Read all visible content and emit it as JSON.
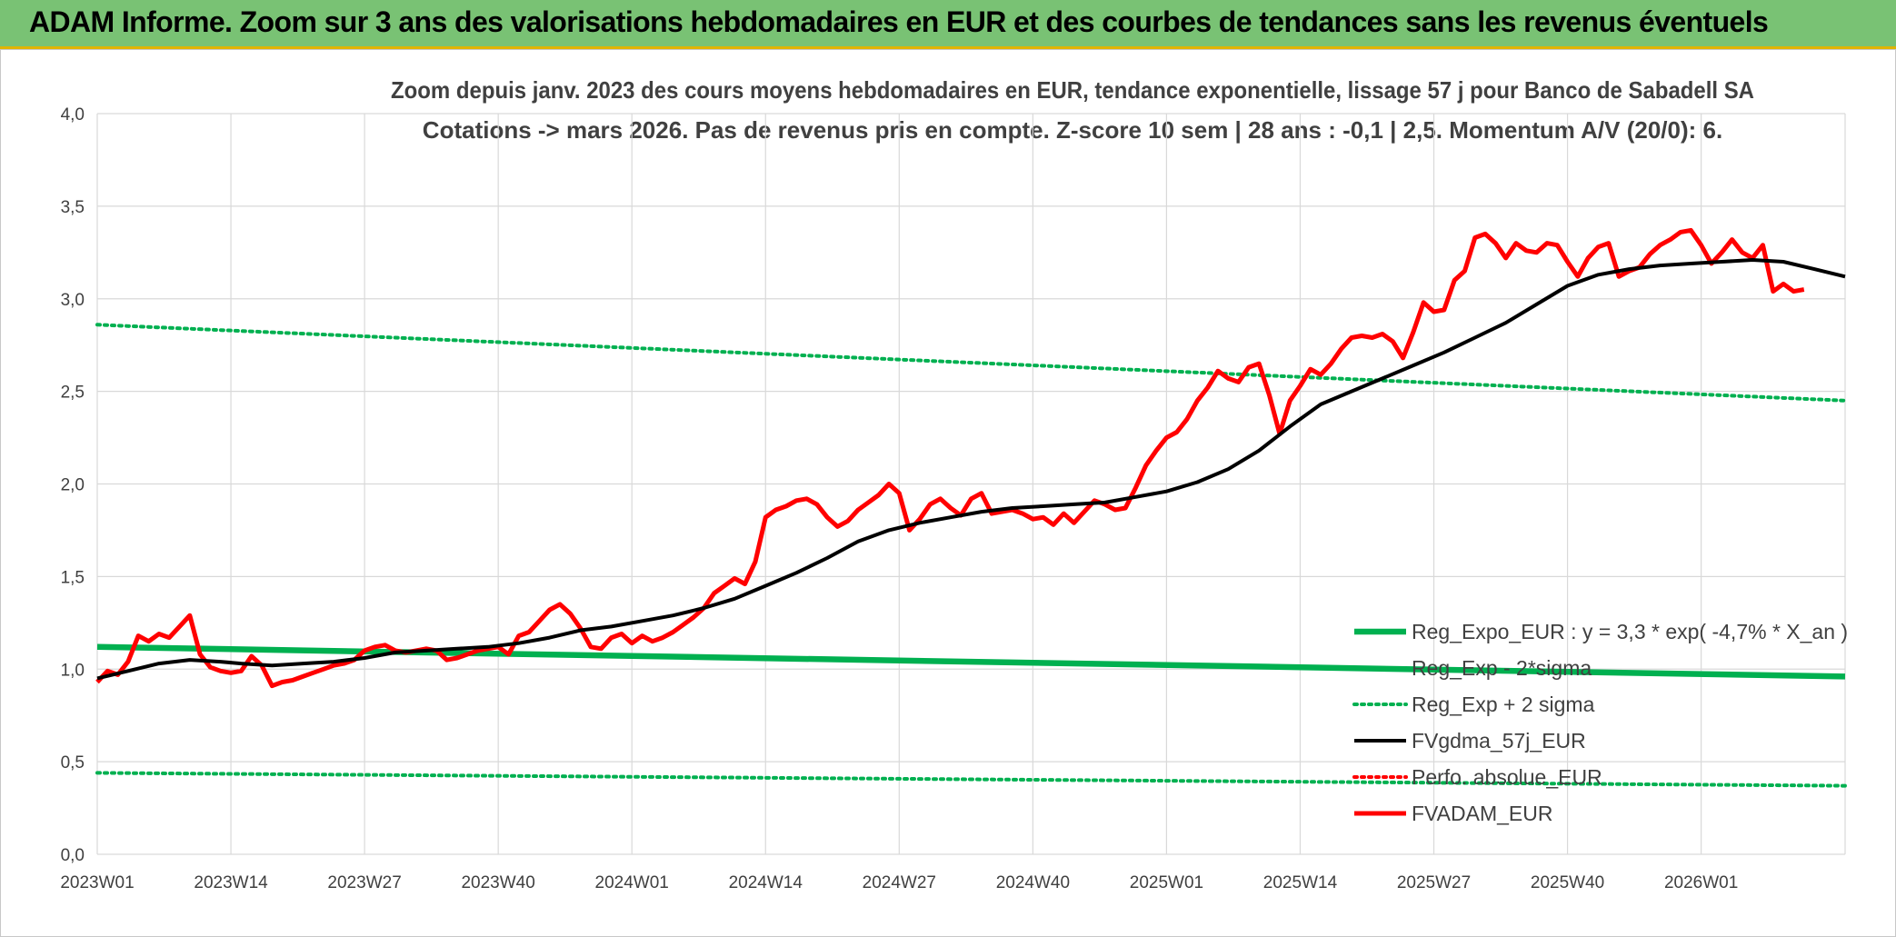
{
  "banner": {
    "title": "ADAM Informe. Zoom sur 3 ans des valorisations hebdomadaires en EUR et des courbes de tendances sans les revenus éventuels"
  },
  "colors": {
    "banner": "#79c274",
    "banner_border": "#e0b400",
    "reg_expo": "#00b050",
    "fvgdma": "#000000",
    "fvadam": "#ff0000",
    "perfo": "#ff0000",
    "grid": "#d9d9d9",
    "text": "#404040"
  },
  "chart_data": {
    "type": "line",
    "title_line1": "Zoom depuis janv. 2023 des cours moyens hebdomadaires en EUR, tendance exponentielle, lissage 57 j pour Banco de Sabadell SA",
    "title_line2": "Cotations -> mars 2026. Pas de revenus pris en compte. Z-score 10 sem | 28 ans : -0,1 | 2,5. Momentum A/V (20/0): 6.",
    "xlabel": "",
    "ylabel": "",
    "x_ticks": [
      "2023W01",
      "2023W14",
      "2023W27",
      "2023W40",
      "2024W01",
      "2024W14",
      "2024W27",
      "2024W40",
      "2025W01",
      "2025W14",
      "2025W27",
      "2025W40",
      "2026W01"
    ],
    "y_ticks": [
      "0,0",
      "0,5",
      "1,0",
      "1,5",
      "2,0",
      "2,5",
      "3,0",
      "3,5",
      "4,0"
    ],
    "ylim": [
      0,
      4
    ],
    "x_range_weeks": [
      0,
      170
    ],
    "grid": true,
    "legend_position": "bottom-right",
    "series": [
      {
        "name": "Reg_Expo_EUR : y = 3,3 * exp( -4,7% *  X_an )",
        "style": "solid-thick",
        "color": "#00b050",
        "points": [
          [
            0,
            1.12
          ],
          [
            170,
            0.96
          ]
        ]
      },
      {
        "name": "Reg_Exp - 2*sigma",
        "style": "dotted",
        "color": "#00b050",
        "points": [
          [
            0,
            0.44
          ],
          [
            170,
            0.37
          ]
        ]
      },
      {
        "name": "Reg_Exp + 2 sigma",
        "style": "dotted",
        "color": "#00b050",
        "points": [
          [
            0,
            2.86
          ],
          [
            170,
            2.45
          ]
        ]
      },
      {
        "name": "FVgdma_57j_EUR",
        "style": "solid",
        "color": "#000000",
        "points": [
          [
            0,
            0.95
          ],
          [
            3,
            0.99
          ],
          [
            6,
            1.03
          ],
          [
            9,
            1.05
          ],
          [
            12,
            1.04
          ],
          [
            14,
            1.03
          ],
          [
            17,
            1.02
          ],
          [
            20,
            1.03
          ],
          [
            23,
            1.04
          ],
          [
            26,
            1.06
          ],
          [
            29,
            1.09
          ],
          [
            32,
            1.1
          ],
          [
            35,
            1.11
          ],
          [
            38,
            1.12
          ],
          [
            41,
            1.14
          ],
          [
            44,
            1.17
          ],
          [
            47,
            1.21
          ],
          [
            50,
            1.23
          ],
          [
            53,
            1.26
          ],
          [
            56,
            1.29
          ],
          [
            59,
            1.33
          ],
          [
            62,
            1.38
          ],
          [
            65,
            1.45
          ],
          [
            68,
            1.52
          ],
          [
            71,
            1.6
          ],
          [
            74,
            1.69
          ],
          [
            77,
            1.75
          ],
          [
            80,
            1.79
          ],
          [
            83,
            1.82
          ],
          [
            86,
            1.85
          ],
          [
            89,
            1.87
          ],
          [
            92,
            1.88
          ],
          [
            95,
            1.89
          ],
          [
            98,
            1.9
          ],
          [
            101,
            1.93
          ],
          [
            104,
            1.96
          ],
          [
            107,
            2.01
          ],
          [
            110,
            2.08
          ],
          [
            113,
            2.18
          ],
          [
            116,
            2.31
          ],
          [
            119,
            2.43
          ],
          [
            122,
            2.5
          ],
          [
            125,
            2.57
          ],
          [
            128,
            2.64
          ],
          [
            131,
            2.71
          ],
          [
            134,
            2.79
          ],
          [
            137,
            2.87
          ],
          [
            140,
            2.97
          ],
          [
            143,
            3.07
          ],
          [
            146,
            3.13
          ],
          [
            149,
            3.16
          ],
          [
            152,
            3.18
          ],
          [
            155,
            3.19
          ],
          [
            158,
            3.2
          ],
          [
            161,
            3.21
          ],
          [
            164,
            3.2
          ],
          [
            167,
            3.16
          ],
          [
            170,
            3.12
          ]
        ]
      },
      {
        "name": "Perfo. absolue_EUR",
        "style": "dotted",
        "color": "#ff0000",
        "points": []
      },
      {
        "name": "FVADAM_EUR",
        "style": "solid-thick",
        "color": "#ff0000",
        "points": [
          [
            0,
            0.93
          ],
          [
            1,
            0.99
          ],
          [
            2,
            0.97
          ],
          [
            3,
            1.04
          ],
          [
            4,
            1.18
          ],
          [
            5,
            1.15
          ],
          [
            6,
            1.19
          ],
          [
            7,
            1.17
          ],
          [
            8,
            1.23
          ],
          [
            9,
            1.29
          ],
          [
            10,
            1.08
          ],
          [
            11,
            1.01
          ],
          [
            12,
            0.99
          ],
          [
            13,
            0.98
          ],
          [
            14,
            0.99
          ],
          [
            15,
            1.07
          ],
          [
            16,
            1.02
          ],
          [
            17,
            0.91
          ],
          [
            18,
            0.93
          ],
          [
            19,
            0.94
          ],
          [
            20,
            0.96
          ],
          [
            21,
            0.98
          ],
          [
            22,
            1.0
          ],
          [
            23,
            1.02
          ],
          [
            24,
            1.03
          ],
          [
            25,
            1.05
          ],
          [
            26,
            1.1
          ],
          [
            27,
            1.12
          ],
          [
            28,
            1.13
          ],
          [
            29,
            1.1
          ],
          [
            30,
            1.09
          ],
          [
            31,
            1.1
          ],
          [
            32,
            1.11
          ],
          [
            33,
            1.1
          ],
          [
            34,
            1.05
          ],
          [
            35,
            1.06
          ],
          [
            36,
            1.08
          ],
          [
            37,
            1.1
          ],
          [
            38,
            1.11
          ],
          [
            39,
            1.12
          ],
          [
            40,
            1.08
          ],
          [
            41,
            1.18
          ],
          [
            42,
            1.2
          ],
          [
            43,
            1.26
          ],
          [
            44,
            1.32
          ],
          [
            45,
            1.35
          ],
          [
            46,
            1.3
          ],
          [
            47,
            1.22
          ],
          [
            48,
            1.12
          ],
          [
            49,
            1.11
          ],
          [
            50,
            1.17
          ],
          [
            51,
            1.19
          ],
          [
            52,
            1.14
          ],
          [
            53,
            1.18
          ],
          [
            54,
            1.15
          ],
          [
            55,
            1.17
          ],
          [
            56,
            1.2
          ],
          [
            57,
            1.24
          ],
          [
            58,
            1.28
          ],
          [
            59,
            1.33
          ],
          [
            60,
            1.41
          ],
          [
            61,
            1.45
          ],
          [
            62,
            1.49
          ],
          [
            63,
            1.46
          ],
          [
            64,
            1.58
          ],
          [
            65,
            1.82
          ],
          [
            66,
            1.86
          ],
          [
            67,
            1.88
          ],
          [
            68,
            1.91
          ],
          [
            69,
            1.92
          ],
          [
            70,
            1.89
          ],
          [
            71,
            1.82
          ],
          [
            72,
            1.77
          ],
          [
            73,
            1.8
          ],
          [
            74,
            1.86
          ],
          [
            75,
            1.9
          ],
          [
            76,
            1.94
          ],
          [
            77,
            2.0
          ],
          [
            78,
            1.95
          ],
          [
            79,
            1.75
          ],
          [
            80,
            1.81
          ],
          [
            81,
            1.89
          ],
          [
            82,
            1.92
          ],
          [
            83,
            1.87
          ],
          [
            84,
            1.83
          ],
          [
            85,
            1.92
          ],
          [
            86,
            1.95
          ],
          [
            87,
            1.84
          ],
          [
            88,
            1.85
          ],
          [
            89,
            1.86
          ],
          [
            90,
            1.84
          ],
          [
            91,
            1.81
          ],
          [
            92,
            1.82
          ],
          [
            93,
            1.78
          ],
          [
            94,
            1.84
          ],
          [
            95,
            1.79
          ],
          [
            96,
            1.85
          ],
          [
            97,
            1.91
          ],
          [
            98,
            1.89
          ],
          [
            99,
            1.86
          ],
          [
            100,
            1.87
          ],
          [
            101,
            1.98
          ],
          [
            102,
            2.1
          ],
          [
            103,
            2.18
          ],
          [
            104,
            2.25
          ],
          [
            105,
            2.28
          ],
          [
            106,
            2.35
          ],
          [
            107,
            2.45
          ],
          [
            108,
            2.52
          ],
          [
            109,
            2.61
          ],
          [
            110,
            2.57
          ],
          [
            111,
            2.55
          ],
          [
            112,
            2.63
          ],
          [
            113,
            2.65
          ],
          [
            114,
            2.48
          ],
          [
            115,
            2.27
          ],
          [
            116,
            2.45
          ],
          [
            117,
            2.53
          ],
          [
            118,
            2.62
          ],
          [
            119,
            2.59
          ],
          [
            120,
            2.65
          ],
          [
            121,
            2.73
          ],
          [
            122,
            2.79
          ],
          [
            123,
            2.8
          ],
          [
            124,
            2.79
          ],
          [
            125,
            2.81
          ],
          [
            126,
            2.77
          ],
          [
            127,
            2.68
          ],
          [
            128,
            2.82
          ],
          [
            129,
            2.98
          ],
          [
            130,
            2.93
          ],
          [
            131,
            2.94
          ],
          [
            132,
            3.1
          ],
          [
            133,
            3.15
          ],
          [
            134,
            3.33
          ],
          [
            135,
            3.35
          ],
          [
            136,
            3.3
          ],
          [
            137,
            3.22
          ],
          [
            138,
            3.3
          ],
          [
            139,
            3.26
          ],
          [
            140,
            3.25
          ],
          [
            141,
            3.3
          ],
          [
            142,
            3.29
          ],
          [
            143,
            3.2
          ],
          [
            144,
            3.12
          ],
          [
            145,
            3.22
          ],
          [
            146,
            3.28
          ],
          [
            147,
            3.3
          ],
          [
            148,
            3.12
          ],
          [
            149,
            3.15
          ],
          [
            150,
            3.17
          ],
          [
            151,
            3.24
          ],
          [
            152,
            3.29
          ],
          [
            153,
            3.32
          ],
          [
            154,
            3.36
          ],
          [
            155,
            3.37
          ],
          [
            156,
            3.29
          ],
          [
            157,
            3.19
          ],
          [
            158,
            3.25
          ],
          [
            159,
            3.32
          ],
          [
            160,
            3.25
          ],
          [
            161,
            3.22
          ],
          [
            162,
            3.29
          ],
          [
            163,
            3.04
          ],
          [
            164,
            3.08
          ],
          [
            165,
            3.04
          ],
          [
            166,
            3.05
          ]
        ]
      }
    ]
  }
}
